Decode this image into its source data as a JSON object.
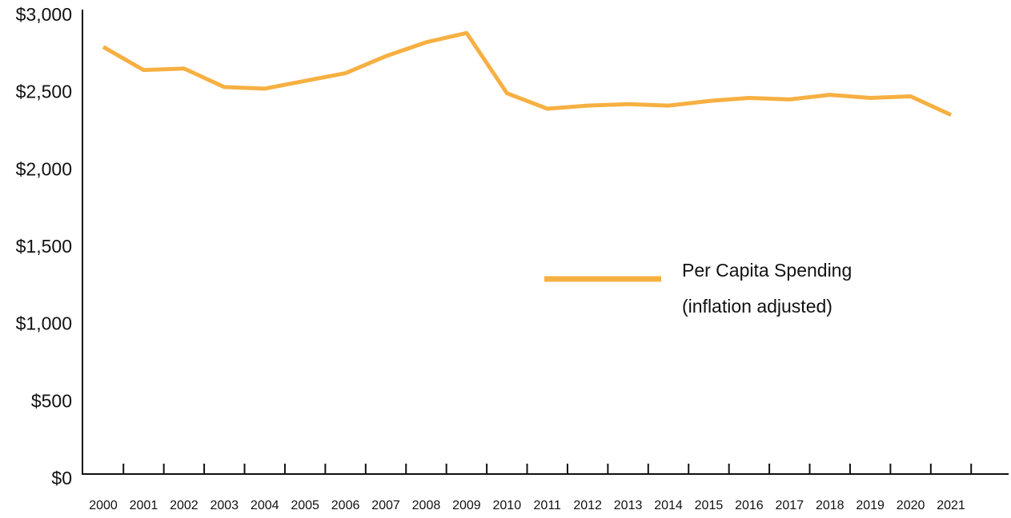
{
  "chart_data": {
    "type": "line",
    "x": [
      "2000",
      "2001",
      "2002",
      "2003",
      "2004",
      "2005",
      "2006",
      "2007",
      "2008",
      "2009",
      "2010",
      "2011",
      "2012",
      "2013",
      "2014",
      "2015",
      "2016",
      "2017",
      "2018",
      "2019",
      "2020",
      "2021"
    ],
    "series": [
      {
        "name": "Per Capita Spending",
        "color": "#f6b042",
        "values": [
          2800,
          2650,
          2660,
          2540,
          2530,
          2580,
          2630,
          2740,
          2830,
          2890,
          2500,
          2400,
          2420,
          2430,
          2420,
          2450,
          2470,
          2460,
          2490,
          2470,
          2480,
          2360
        ]
      }
    ],
    "legend_note": "(inflation adjusted)",
    "legend": "center-right",
    "ylim": [
      0,
      3000
    ],
    "yticks": [
      {
        "value": 0,
        "label": "$0"
      },
      {
        "value": 500,
        "label": "$500"
      },
      {
        "value": 1000,
        "label": "$1,000"
      },
      {
        "value": 1500,
        "label": "$1,500"
      },
      {
        "value": 2000,
        "label": "$2,000"
      },
      {
        "value": 2500,
        "label": "$2,500"
      },
      {
        "value": 3000,
        "label": "$3,000"
      }
    ],
    "grid": false
  }
}
